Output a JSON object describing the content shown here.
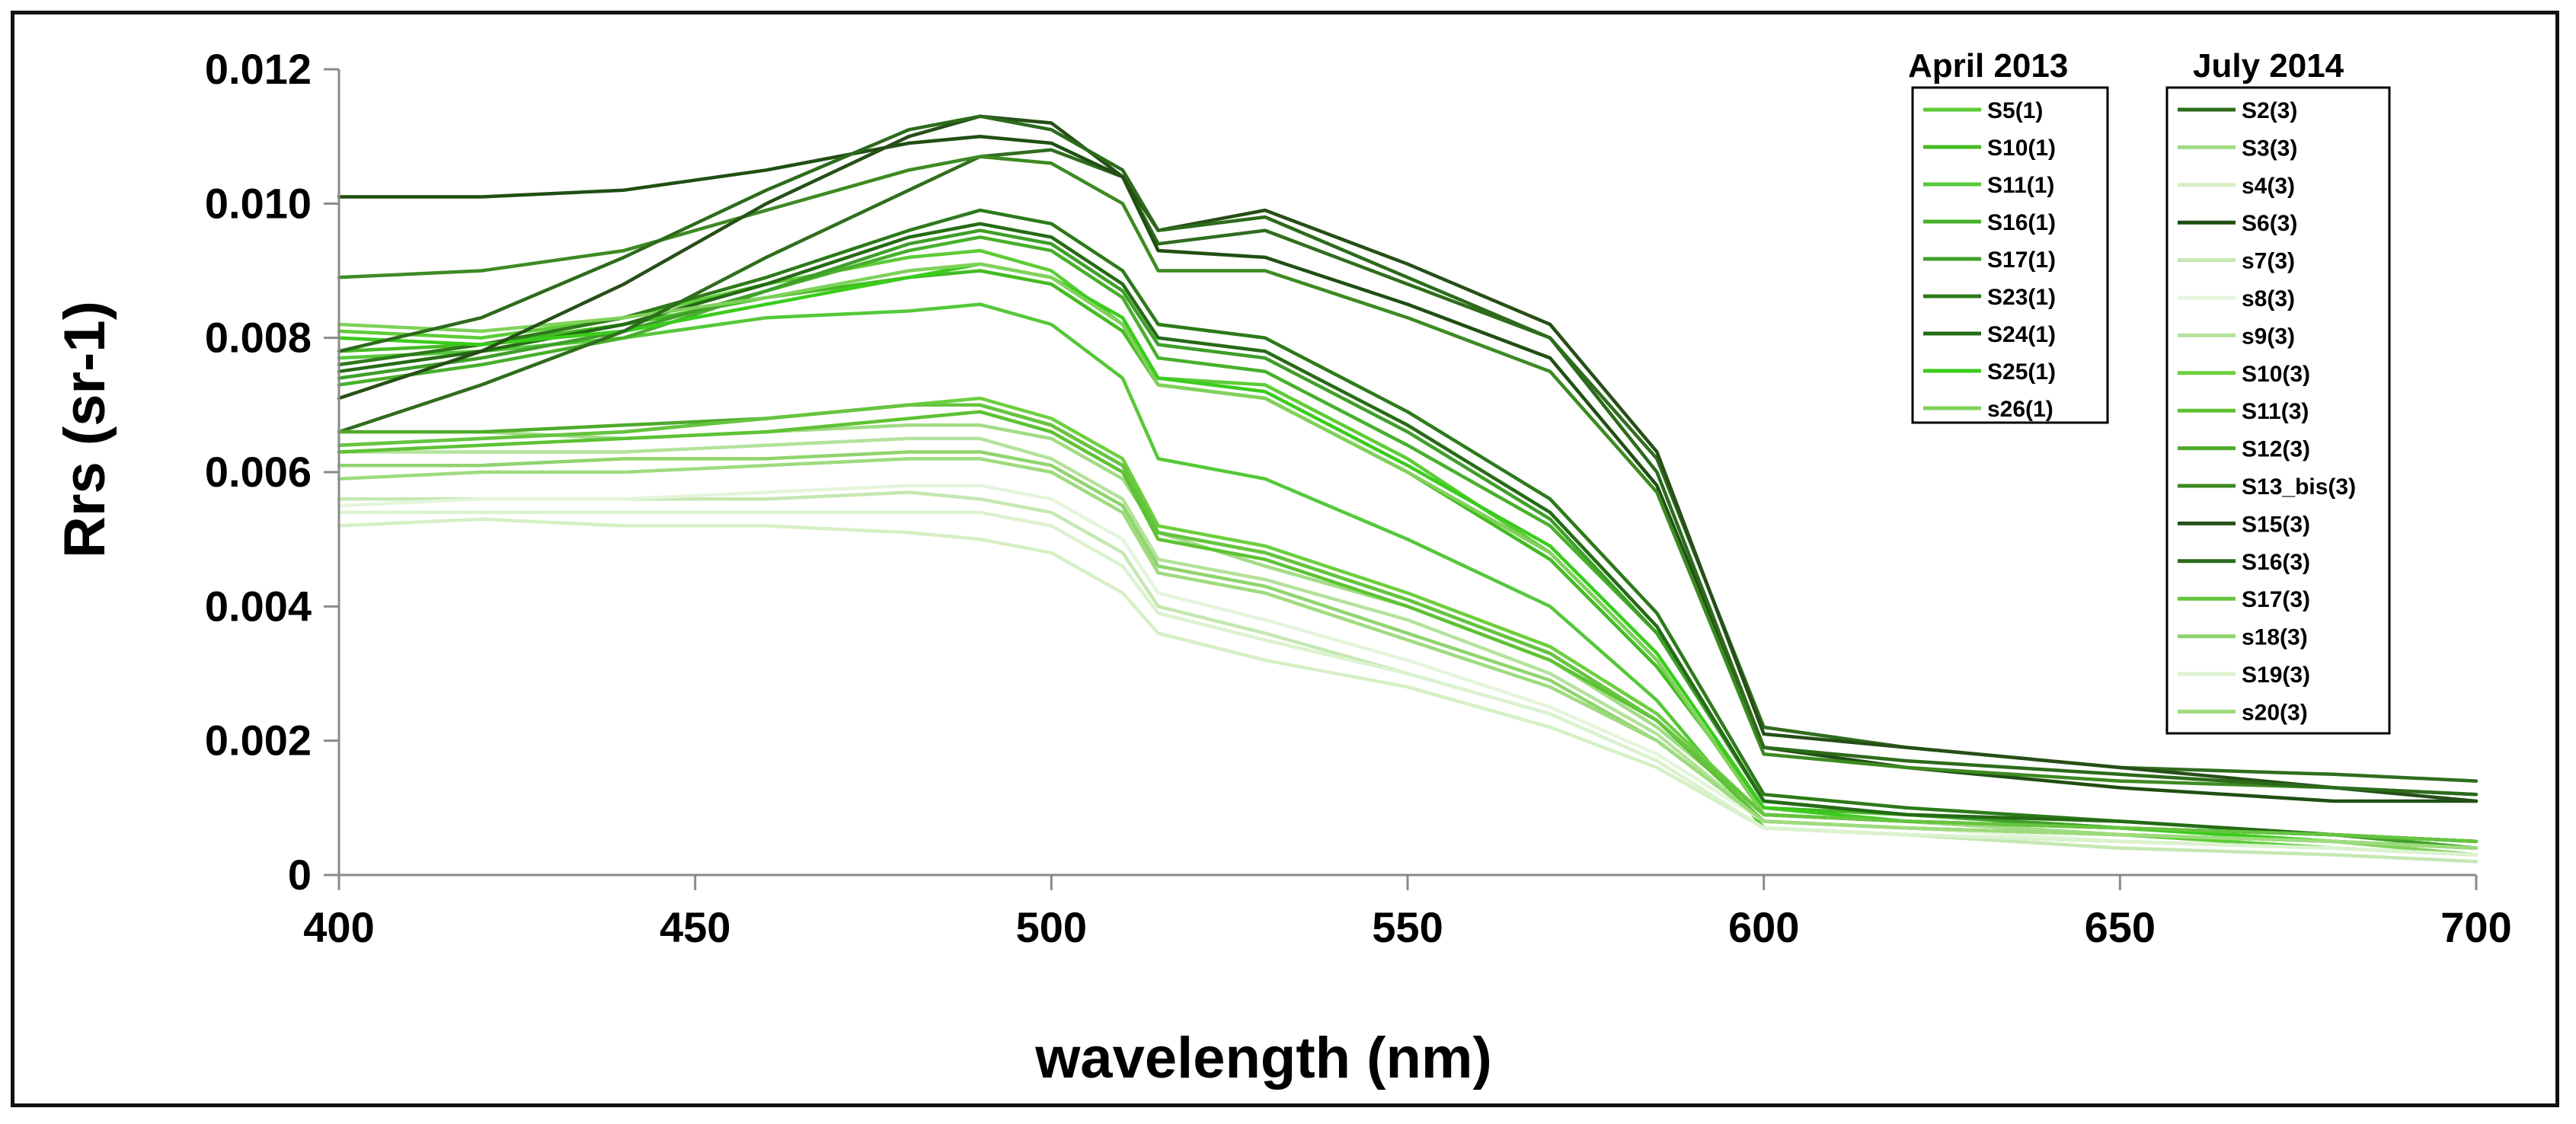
{
  "chart_data": {
    "type": "line",
    "xlabel": "wavelength (nm)",
    "ylabel": "Rrs (sr-1)",
    "xlim": [
      400,
      700
    ],
    "ylim": [
      0,
      0.012
    ],
    "x_ticks": [
      "400",
      "450",
      "500",
      "550",
      "600",
      "650",
      "700"
    ],
    "y_ticks": [
      "0",
      "0.002",
      "0.004",
      "0.006",
      "0.008",
      "0.010",
      "0.012"
    ],
    "x": [
      400,
      420,
      440,
      460,
      480,
      490,
      500,
      510,
      515,
      530,
      550,
      570,
      585,
      600,
      620,
      650,
      680,
      700
    ],
    "legend_groups": [
      {
        "title": "April 2013",
        "series": [
          "S5(1)",
          "S10(1)",
          "S11(1)",
          "S16(1)",
          "S17(1)",
          "S23(1)",
          "S24(1)",
          "S25(1)",
          "s26(1)"
        ]
      },
      {
        "title": "July 2014",
        "series": [
          "S2(3)",
          "S3(3)",
          "s4(3)",
          "S6(3)",
          "s7(3)",
          "s8(3)",
          "s9(3)",
          "S10(3)",
          "S11(3)",
          "S12(3)",
          "S13_bis(3)",
          "S15(3)",
          "S16(3)",
          "S17(3)",
          "s18(3)",
          "S19(3)",
          "s20(3)"
        ]
      }
    ],
    "series": [
      {
        "name": "S5(1)",
        "color": "#5ccc36",
        "values": [
          0.0081,
          0.008,
          0.0083,
          0.0088,
          0.0092,
          0.0093,
          0.009,
          0.0082,
          0.0074,
          0.0073,
          0.0062,
          0.0048,
          0.0032,
          0.0009,
          0.0008,
          0.0006,
          0.0004,
          0.0003
        ]
      },
      {
        "name": "S10(1)",
        "color": "#44bb22",
        "values": [
          0.0078,
          0.0079,
          0.0082,
          0.0086,
          0.0089,
          0.009,
          0.0088,
          0.0081,
          0.0073,
          0.0071,
          0.006,
          0.0047,
          0.0031,
          0.001,
          0.0009,
          0.0007,
          0.0005,
          0.0004
        ]
      },
      {
        "name": "S11(1)",
        "color": "#55c83a",
        "values": [
          0.0077,
          0.0078,
          0.008,
          0.0083,
          0.0084,
          0.0085,
          0.0082,
          0.0074,
          0.0062,
          0.0059,
          0.005,
          0.004,
          0.0026,
          0.0007,
          0.0006,
          0.0005,
          0.0004,
          0.0003
        ]
      },
      {
        "name": "S16(1)",
        "color": "#48b02c",
        "values": [
          0.0073,
          0.0076,
          0.008,
          0.0087,
          0.0093,
          0.0095,
          0.0093,
          0.0086,
          0.0077,
          0.0075,
          0.0064,
          0.0052,
          0.0036,
          0.0011,
          0.0009,
          0.0007,
          0.0006,
          0.0004
        ]
      },
      {
        "name": "S17(1)",
        "color": "#3f9f2a",
        "values": [
          0.0074,
          0.0077,
          0.0081,
          0.0087,
          0.0094,
          0.0096,
          0.0094,
          0.0087,
          0.0079,
          0.0077,
          0.0066,
          0.0053,
          0.0036,
          0.0011,
          0.0009,
          0.0007,
          0.0006,
          0.0004
        ]
      },
      {
        "name": "S23(1)",
        "color": "#2d7a1a",
        "values": [
          0.0076,
          0.0079,
          0.0083,
          0.0089,
          0.0096,
          0.0099,
          0.0097,
          0.009,
          0.0082,
          0.008,
          0.0069,
          0.0056,
          0.0039,
          0.0012,
          0.001,
          0.0008,
          0.0006,
          0.0005
        ]
      },
      {
        "name": "S24(1)",
        "color": "#256b14",
        "values": [
          0.0075,
          0.0078,
          0.0082,
          0.0088,
          0.0095,
          0.0097,
          0.0095,
          0.0088,
          0.008,
          0.0078,
          0.0067,
          0.0054,
          0.0037,
          0.0011,
          0.0009,
          0.0008,
          0.0006,
          0.0005
        ]
      },
      {
        "name": "S25(1)",
        "color": "#3acc1c",
        "values": [
          0.008,
          0.0079,
          0.0081,
          0.0085,
          0.0089,
          0.0091,
          0.0089,
          0.0083,
          0.0074,
          0.0072,
          0.0061,
          0.0049,
          0.0033,
          0.001,
          0.0008,
          0.0007,
          0.0005,
          0.0004
        ]
      },
      {
        "name": "s26(1)",
        "color": "#7fd15a",
        "values": [
          0.0082,
          0.0081,
          0.0083,
          0.0086,
          0.009,
          0.0091,
          0.0089,
          0.0082,
          0.0073,
          0.0071,
          0.006,
          0.0048,
          0.0032,
          0.0009,
          0.0008,
          0.0006,
          0.0005,
          0.0003
        ]
      },
      {
        "name": "S2(3)",
        "color": "#2f6d1d",
        "values": [
          0.0066,
          0.0073,
          0.0081,
          0.0092,
          0.0102,
          0.0107,
          0.0108,
          0.0104,
          0.0094,
          0.0096,
          0.0088,
          0.008,
          0.0062,
          0.0022,
          0.0019,
          0.0016,
          0.0015,
          0.0014
        ]
      },
      {
        "name": "S3(3)",
        "color": "#a2dc86",
        "values": [
          0.0066,
          0.0066,
          0.0065,
          0.0066,
          0.0067,
          0.0067,
          0.0065,
          0.0059,
          0.0051,
          0.0046,
          0.004,
          0.0032,
          0.0022,
          0.0009,
          0.0008,
          0.0006,
          0.0005,
          0.0004
        ]
      },
      {
        "name": "s4(3)",
        "color": "#d5f0c5",
        "values": [
          0.0052,
          0.0053,
          0.0052,
          0.0052,
          0.0051,
          0.005,
          0.0048,
          0.0042,
          0.0036,
          0.0032,
          0.0028,
          0.0022,
          0.0016,
          0.0007,
          0.0006,
          0.0005,
          0.0004,
          0.0003
        ]
      },
      {
        "name": "S6(3)",
        "color": "#1f4f12",
        "values": [
          0.0101,
          0.0101,
          0.0102,
          0.0105,
          0.0109,
          0.011,
          0.0109,
          0.0104,
          0.0093,
          0.0092,
          0.0085,
          0.0077,
          0.0058,
          0.0019,
          0.0016,
          0.0013,
          0.0011,
          0.0011
        ]
      },
      {
        "name": "s7(3)",
        "color": "#c5e8b2",
        "values": [
          0.0056,
          0.0056,
          0.0056,
          0.0056,
          0.0057,
          0.0056,
          0.0054,
          0.0048,
          0.004,
          0.0036,
          0.003,
          0.0024,
          0.0017,
          0.0007,
          0.0006,
          0.0004,
          0.0003,
          0.0002
        ]
      },
      {
        "name": "s8(3)",
        "color": "#e5f5dc",
        "values": [
          0.0055,
          0.0056,
          0.0056,
          0.0057,
          0.0058,
          0.0058,
          0.0056,
          0.005,
          0.0042,
          0.0038,
          0.0032,
          0.0025,
          0.0018,
          0.0008,
          0.0007,
          0.0005,
          0.0004,
          0.0003
        ]
      },
      {
        "name": "s9(3)",
        "color": "#b4e29b",
        "values": [
          0.0063,
          0.0063,
          0.0063,
          0.0064,
          0.0065,
          0.0065,
          0.0062,
          0.0056,
          0.0047,
          0.0044,
          0.0038,
          0.003,
          0.0021,
          0.0008,
          0.0007,
          0.0006,
          0.0005,
          0.0004
        ]
      },
      {
        "name": "S10(3)",
        "color": "#6ccf3e",
        "values": [
          0.0064,
          0.0065,
          0.0066,
          0.0068,
          0.007,
          0.0071,
          0.0068,
          0.0062,
          0.0052,
          0.0049,
          0.0042,
          0.0034,
          0.0024,
          0.0009,
          0.0008,
          0.0007,
          0.0006,
          0.0005
        ]
      },
      {
        "name": "S11(3)",
        "color": "#5ec234",
        "values": [
          0.0063,
          0.0064,
          0.0065,
          0.0066,
          0.0068,
          0.0069,
          0.0066,
          0.006,
          0.005,
          0.0047,
          0.004,
          0.0032,
          0.0023,
          0.0008,
          0.0007,
          0.0006,
          0.0005,
          0.0004
        ]
      },
      {
        "name": "S12(3)",
        "color": "#4faa2c",
        "values": [
          0.0066,
          0.0066,
          0.0067,
          0.0068,
          0.007,
          0.007,
          0.0067,
          0.0061,
          0.0051,
          0.0048,
          0.0041,
          0.0033,
          0.0023,
          0.0009,
          0.0008,
          0.0007,
          0.0006,
          0.0005
        ]
      },
      {
        "name": "S13_bis(3)",
        "color": "#3d8a22",
        "values": [
          0.0089,
          0.009,
          0.0093,
          0.0099,
          0.0105,
          0.0107,
          0.0106,
          0.01,
          0.009,
          0.009,
          0.0083,
          0.0075,
          0.0057,
          0.0018,
          0.0016,
          0.0014,
          0.0013,
          0.0012
        ]
      },
      {
        "name": "S15(3)",
        "color": "#264f17",
        "values": [
          0.0071,
          0.0078,
          0.0088,
          0.01,
          0.011,
          0.0113,
          0.0112,
          0.0104,
          0.0096,
          0.0099,
          0.0091,
          0.0082,
          0.0063,
          0.0021,
          0.0019,
          0.0016,
          0.0013,
          0.0011
        ]
      },
      {
        "name": "S16(3)",
        "color": "#2c6b1b",
        "values": [
          0.0078,
          0.0083,
          0.0092,
          0.0102,
          0.0111,
          0.0113,
          0.0111,
          0.0105,
          0.0096,
          0.0098,
          0.0089,
          0.008,
          0.006,
          0.0019,
          0.0017,
          0.0015,
          0.0013,
          0.0012
        ]
      },
      {
        "name": "S17(3)",
        "color": "#66c440",
        "values": [
          0.0064,
          0.0065,
          0.0066,
          0.0068,
          0.007,
          0.007,
          0.0067,
          0.0061,
          0.0051,
          0.0048,
          0.0041,
          0.0033,
          0.0023,
          0.0009,
          0.0008,
          0.0007,
          0.0006,
          0.0005
        ]
      },
      {
        "name": "s18(3)",
        "color": "#90d46e",
        "values": [
          0.0061,
          0.0061,
          0.0062,
          0.0062,
          0.0063,
          0.0063,
          0.0061,
          0.0055,
          0.0046,
          0.0043,
          0.0036,
          0.0029,
          0.002,
          0.0008,
          0.0007,
          0.0006,
          0.0005,
          0.0004
        ]
      },
      {
        "name": "S19(3)",
        "color": "#dbf2cf",
        "values": [
          0.0054,
          0.0054,
          0.0054,
          0.0054,
          0.0054,
          0.0054,
          0.0052,
          0.0046,
          0.0039,
          0.0035,
          0.003,
          0.0024,
          0.0017,
          0.0007,
          0.0006,
          0.0005,
          0.0004,
          0.0003
        ]
      },
      {
        "name": "s20(3)",
        "color": "#9edb7e",
        "values": [
          0.0059,
          0.006,
          0.006,
          0.0061,
          0.0062,
          0.0062,
          0.006,
          0.0054,
          0.0045,
          0.0042,
          0.0035,
          0.0028,
          0.002,
          0.0008,
          0.0007,
          0.0006,
          0.0005,
          0.0004
        ]
      }
    ]
  }
}
